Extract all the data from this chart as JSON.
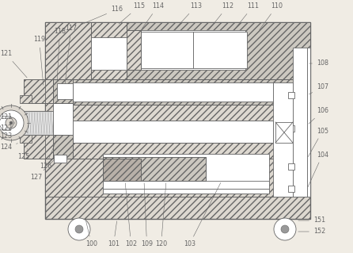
{
  "bg_color": "#f0ece4",
  "line_color": "#666666",
  "lw": 0.6,
  "fs": 5.8,
  "hatch_fc": "#ddd8d0",
  "hatch_fc2": "#ccc8c0",
  "white": "#ffffff"
}
